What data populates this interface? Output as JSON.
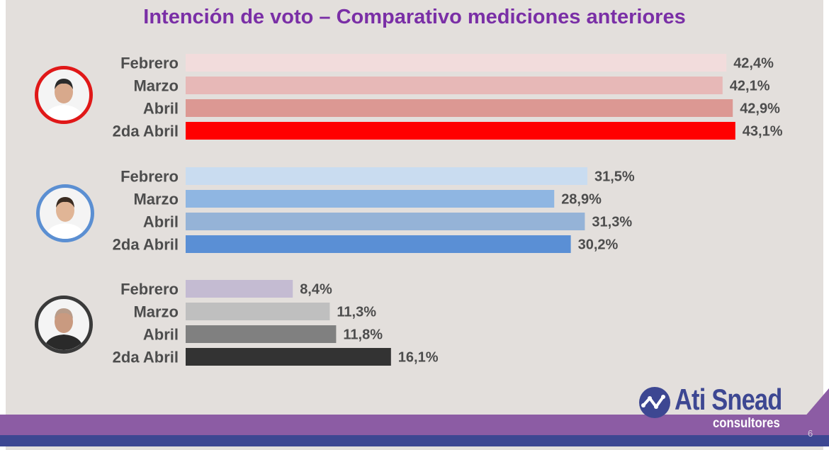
{
  "slide": {
    "title": "Intención de voto – Comparativo mediciones anteriores",
    "page_number": "6",
    "logo": {
      "name": "Ati Snead",
      "subtitle": "consultores"
    }
  },
  "chart_data": {
    "type": "bar",
    "orientation": "horizontal",
    "title": "Intención de voto – Comparativo mediciones anteriores",
    "categories": [
      "Febrero",
      "Marzo",
      "Abril",
      "2da Abril"
    ],
    "xlim": [
      0,
      50
    ],
    "grid": false,
    "legend": "none",
    "groups": [
      {
        "avatar_border": "#e01818",
        "values": [
          42.4,
          42.1,
          42.9,
          43.1
        ],
        "labels": [
          "42,4%",
          "42,1%",
          "42,9%",
          "43,1%"
        ],
        "colors": [
          "#f2dcdc",
          "#e7b8b7",
          "#dc9893",
          "#ff0000"
        ]
      },
      {
        "avatar_border": "#5b8fd2",
        "values": [
          31.5,
          28.9,
          31.3,
          30.2
        ],
        "labels": [
          "31,5%",
          "28,9%",
          "31,3%",
          "30,2%"
        ],
        "colors": [
          "#c9dcf0",
          "#8fb6e2",
          "#95b3d7",
          "#5a8fd5"
        ]
      },
      {
        "avatar_border": "#3a3a3a",
        "values": [
          8.4,
          11.3,
          11.8,
          16.1
        ],
        "labels": [
          "8,4%",
          "11,3%",
          "11,8%",
          "16,1%"
        ],
        "colors": [
          "#c4bbd2",
          "#bfbfbf",
          "#808080",
          "#333333"
        ]
      }
    ]
  }
}
